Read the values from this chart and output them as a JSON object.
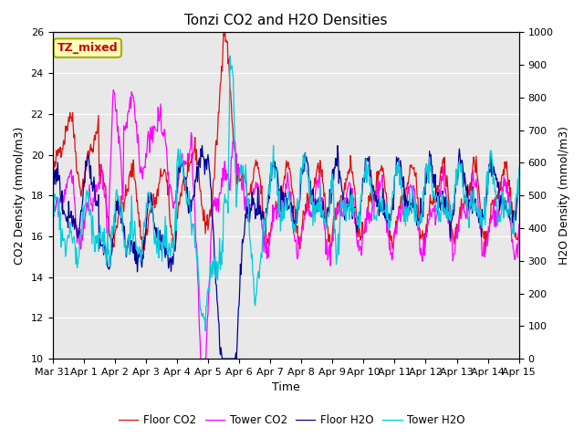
{
  "title": "Tonzi CO2 and H2O Densities",
  "xlabel": "Time",
  "ylabel_left": "CO2 Density (mmol/m3)",
  "ylabel_right": "H2O Density (mmol/m3)",
  "ylim_left": [
    10,
    26
  ],
  "ylim_right": [
    0,
    1000
  ],
  "yticks_left": [
    10,
    12,
    14,
    16,
    18,
    20,
    22,
    24,
    26
  ],
  "yticks_right": [
    0,
    100,
    200,
    300,
    400,
    500,
    600,
    700,
    800,
    900,
    1000
  ],
  "annotation_text": "TZ_mixed",
  "annotation_color": "#cc0000",
  "annotation_bg": "#ffffbb",
  "annotation_edge": "#aaaa00",
  "bg_color": "#e8e8e8",
  "legend_entries": [
    "Floor CO2",
    "Tower CO2",
    "Floor H2O",
    "Tower H2O"
  ],
  "line_colors": [
    "#dd1111",
    "#ff00ff",
    "#000099",
    "#00ccdd"
  ],
  "xtick_labels": [
    "Mar 31",
    "Apr 1",
    "Apr 2",
    "Apr 3",
    "Apr 4",
    "Apr 5",
    "Apr 6",
    "Apr 7",
    "Apr 8",
    "Apr 9",
    "Apr 10",
    "Apr 11",
    "Apr 12",
    "Apr 13",
    "Apr 14",
    "Apr 15"
  ],
  "title_fontsize": 11,
  "axis_fontsize": 9,
  "tick_fontsize": 8
}
